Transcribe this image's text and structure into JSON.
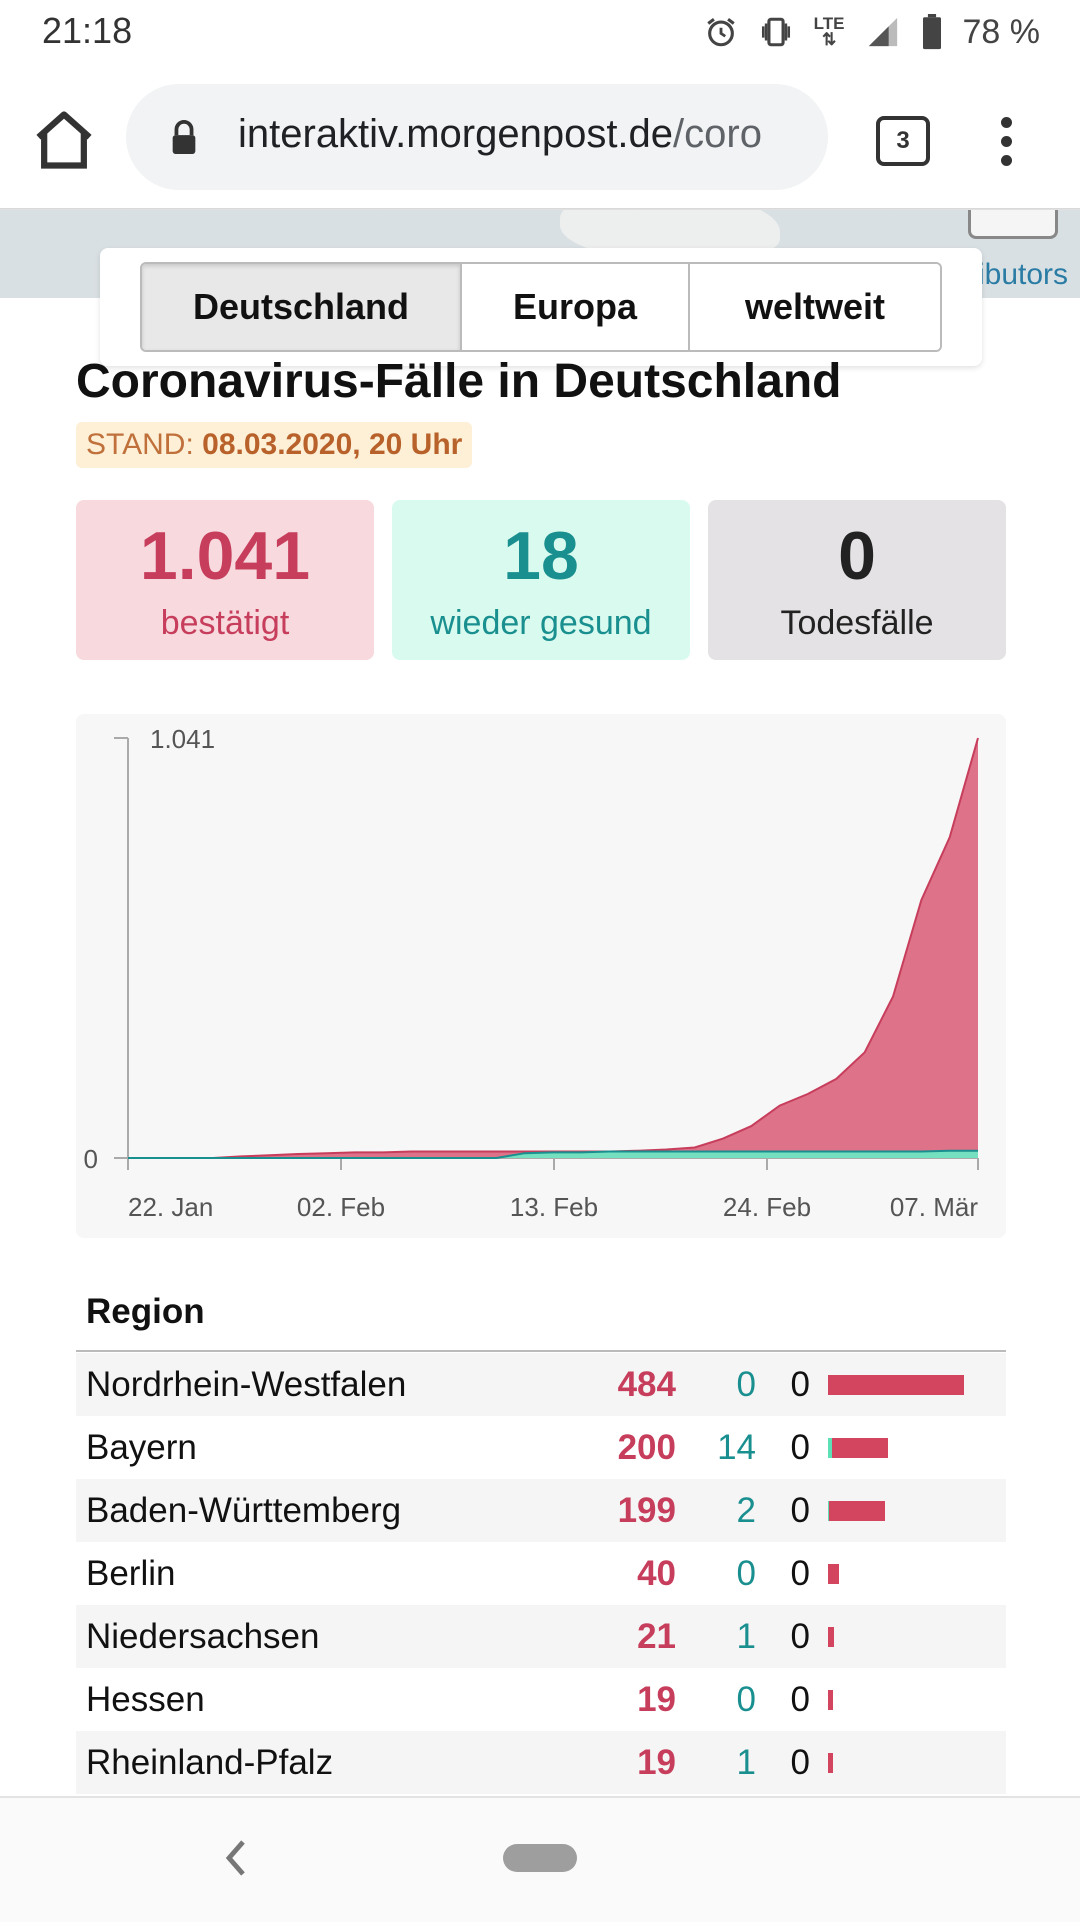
{
  "status_bar": {
    "time": "21:18",
    "network": "LTE",
    "battery": "78 %",
    "icons": [
      "alarm-icon",
      "vibrate-icon",
      "lte-icon",
      "signal-icon",
      "battery-icon"
    ]
  },
  "browser": {
    "url_host": "interaktiv.morgenpost.de",
    "url_path": "/coro",
    "tab_count": "3",
    "icons": [
      "home-icon",
      "lock-icon",
      "more-vert-icon"
    ]
  },
  "map": {
    "attribution": "ibutors"
  },
  "region_tabs": [
    {
      "label": "Deutschland",
      "active": true
    },
    {
      "label": "Europa",
      "active": false
    },
    {
      "label": "weltweit",
      "active": false
    }
  ],
  "page": {
    "title": "Coronavirus-Fälle in Deutschland",
    "stand_label": "STAND:",
    "stand_value": "08.03.2020, 20 Uhr"
  },
  "stats": {
    "confirmed": {
      "value": "1.041",
      "label": "bestätigt"
    },
    "recovered": {
      "value": "18",
      "label": "wieder gesund"
    },
    "deaths": {
      "value": "0",
      "label": "Todesfälle"
    }
  },
  "colors": {
    "confirmed": "#c73e5c",
    "confirmed_fill": "#db6a82",
    "recovered": "#1a8f8f",
    "recovered_fill": "#6ee6c2",
    "deaths": "#222222"
  },
  "chart_data": {
    "type": "area",
    "x_tick_labels": [
      "22. Jan",
      "02. Feb",
      "13. Feb",
      "24. Feb",
      "07. Mär"
    ],
    "y_tick_labels": [
      "0",
      "1.041"
    ],
    "ylim": [
      0,
      1041
    ],
    "x_dates": [
      "22. Jan",
      "24. Jan",
      "26. Jan",
      "28. Jan",
      "30. Jan",
      "01. Feb",
      "03. Feb",
      "05. Feb",
      "07. Feb",
      "09. Feb",
      "11. Feb",
      "13. Feb",
      "15. Feb",
      "17. Feb",
      "19. Feb",
      "21. Feb",
      "23. Feb",
      "24. Feb",
      "25. Feb",
      "26. Feb",
      "27. Feb",
      "28. Feb",
      "29. Feb",
      "01. Mär",
      "02. Mär",
      "03. Mär",
      "04. Mär",
      "05. Mär",
      "06. Mär",
      "07. Mär",
      "08. Mär"
    ],
    "series": [
      {
        "name": "bestätigt",
        "values": [
          0,
          0,
          0,
          0,
          4,
          7,
          10,
          12,
          14,
          14,
          16,
          16,
          16,
          16,
          16,
          16,
          16,
          16,
          18,
          21,
          26,
          48,
          79,
          130,
          159,
          196,
          262,
          400,
          639,
          795,
          1041
        ]
      },
      {
        "name": "wieder gesund",
        "values": [
          0,
          0,
          0,
          0,
          0,
          0,
          0,
          0,
          0,
          0,
          0,
          0,
          0,
          0,
          12,
          14,
          14,
          16,
          16,
          16,
          16,
          16,
          16,
          16,
          16,
          16,
          16,
          16,
          16,
          18,
          18
        ]
      }
    ],
    "grid": false,
    "legend": "none"
  },
  "table": {
    "header": "Region",
    "rows": [
      {
        "name": "Nordrhein-Westfalen",
        "confirmed": "484",
        "recovered": "0",
        "deaths": "0",
        "confirmed_n": 484,
        "recovered_n": 0
      },
      {
        "name": "Bayern",
        "confirmed": "200",
        "recovered": "14",
        "deaths": "0",
        "confirmed_n": 200,
        "recovered_n": 14
      },
      {
        "name": "Baden-Württemberg",
        "confirmed": "199",
        "recovered": "2",
        "deaths": "0",
        "confirmed_n": 199,
        "recovered_n": 2
      },
      {
        "name": "Berlin",
        "confirmed": "40",
        "recovered": "0",
        "deaths": "0",
        "confirmed_n": 40,
        "recovered_n": 0
      },
      {
        "name": "Niedersachsen",
        "confirmed": "21",
        "recovered": "1",
        "deaths": "0",
        "confirmed_n": 21,
        "recovered_n": 1
      },
      {
        "name": "Hessen",
        "confirmed": "19",
        "recovered": "0",
        "deaths": "0",
        "confirmed_n": 19,
        "recovered_n": 0
      },
      {
        "name": "Rheinland-Pfalz",
        "confirmed": "19",
        "recovered": "1",
        "deaths": "0",
        "confirmed_n": 19,
        "recovered_n": 1
      }
    ]
  },
  "nav_bar": {
    "icons": [
      "back-icon",
      "home-pill-icon"
    ]
  }
}
